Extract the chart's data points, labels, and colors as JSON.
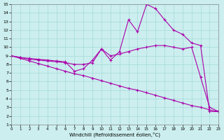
{
  "xlabel": "Windchill (Refroidissement éolien,°C)",
  "background_color": "#cceeee",
  "grid_color": "#aadddd",
  "line_color": "#aa00aa",
  "xlim": [
    0,
    23
  ],
  "ylim": [
    1,
    15
  ],
  "xticks": [
    0,
    1,
    2,
    3,
    4,
    5,
    6,
    7,
    8,
    9,
    10,
    11,
    12,
    13,
    14,
    15,
    16,
    17,
    18,
    19,
    20,
    21,
    22,
    23
  ],
  "yticks": [
    1,
    2,
    3,
    4,
    5,
    6,
    7,
    8,
    9,
    10,
    11,
    12,
    13,
    14,
    15
  ],
  "series": [
    {
      "x": [
        0,
        1,
        2,
        3,
        4,
        5,
        6,
        7,
        8,
        9,
        10,
        11,
        12,
        13,
        14,
        15,
        16,
        17,
        18,
        19,
        20,
        21,
        22,
        23
      ],
      "y": [
        9,
        8.8,
        8.7,
        8.6,
        8.5,
        8.4,
        8.3,
        7.2,
        7.5,
        8.5,
        9.8,
        8.5,
        9.5,
        13.2,
        11.8,
        15,
        14.5,
        13.2,
        12,
        11.5,
        10.5,
        10.2,
        2.5,
        2.5
      ]
    },
    {
      "x": [
        0,
        1,
        2,
        3,
        4,
        5,
        6,
        7,
        8,
        9,
        10,
        11,
        12,
        13,
        14,
        15,
        16,
        17,
        18,
        19,
        20,
        21,
        22,
        23
      ],
      "y": [
        9,
        8.8,
        8.6,
        8.5,
        8.4,
        8.3,
        8.2,
        8.0,
        8.0,
        8.2,
        9.8,
        9.0,
        9.2,
        9.5,
        9.8,
        10.0,
        10.2,
        10.2,
        10.0,
        9.8,
        10.0,
        6.5,
        3.0,
        2.5
      ]
    },
    {
      "x": [
        0,
        1,
        2,
        3,
        4,
        5,
        6,
        7,
        8,
        9,
        10,
        11,
        12,
        13,
        14,
        15,
        16,
        17,
        18,
        19,
        20,
        21,
        22,
        23
      ],
      "y": [
        9,
        8.7,
        8.4,
        8.1,
        7.8,
        7.5,
        7.2,
        6.9,
        6.7,
        6.4,
        6.1,
        5.8,
        5.5,
        5.2,
        5.0,
        4.7,
        4.4,
        4.1,
        3.8,
        3.5,
        3.2,
        3.0,
        2.7,
        2.5
      ]
    }
  ]
}
